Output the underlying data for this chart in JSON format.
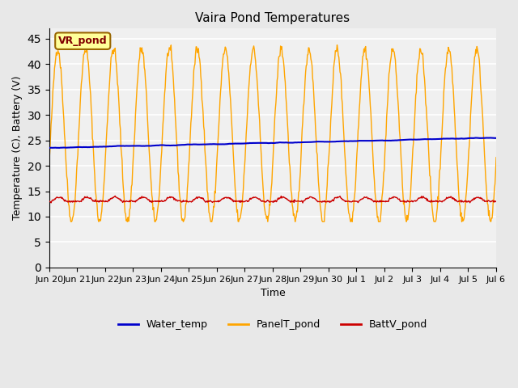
{
  "title": "Vaira Pond Temperatures",
  "xlabel": "Time",
  "ylabel": "Temperature (C), Battery (V)",
  "annotation": "VR_pond",
  "xlim_start": 0,
  "xlim_end": 16,
  "ylim": [
    0,
    47
  ],
  "yticks": [
    0,
    5,
    10,
    15,
    20,
    25,
    30,
    35,
    40,
    45
  ],
  "xtick_labels": [
    "Jun 20",
    "Jun 21",
    "Jun 22",
    "Jun 23",
    "Jun 24",
    "Jun 25",
    "Jun 26",
    "Jun 27",
    "Jun 28",
    "Jun 29",
    "Jun 30",
    "Jul 1",
    "Jul 2",
    "Jul 3",
    "Jul 4",
    "Jul 5",
    "Jul 6"
  ],
  "water_temp_color": "#0000cc",
  "panel_temp_color": "#ffa500",
  "batt_color": "#cc0000",
  "bg_color": "#e8e8e8",
  "plot_bg_color": "#f5f5f5",
  "legend_labels": [
    "Water_temp",
    "PanelT_pond",
    "BattV_pond"
  ],
  "grid_color": "white",
  "annotation_bg": "#ffff99",
  "annotation_border": "#996600"
}
